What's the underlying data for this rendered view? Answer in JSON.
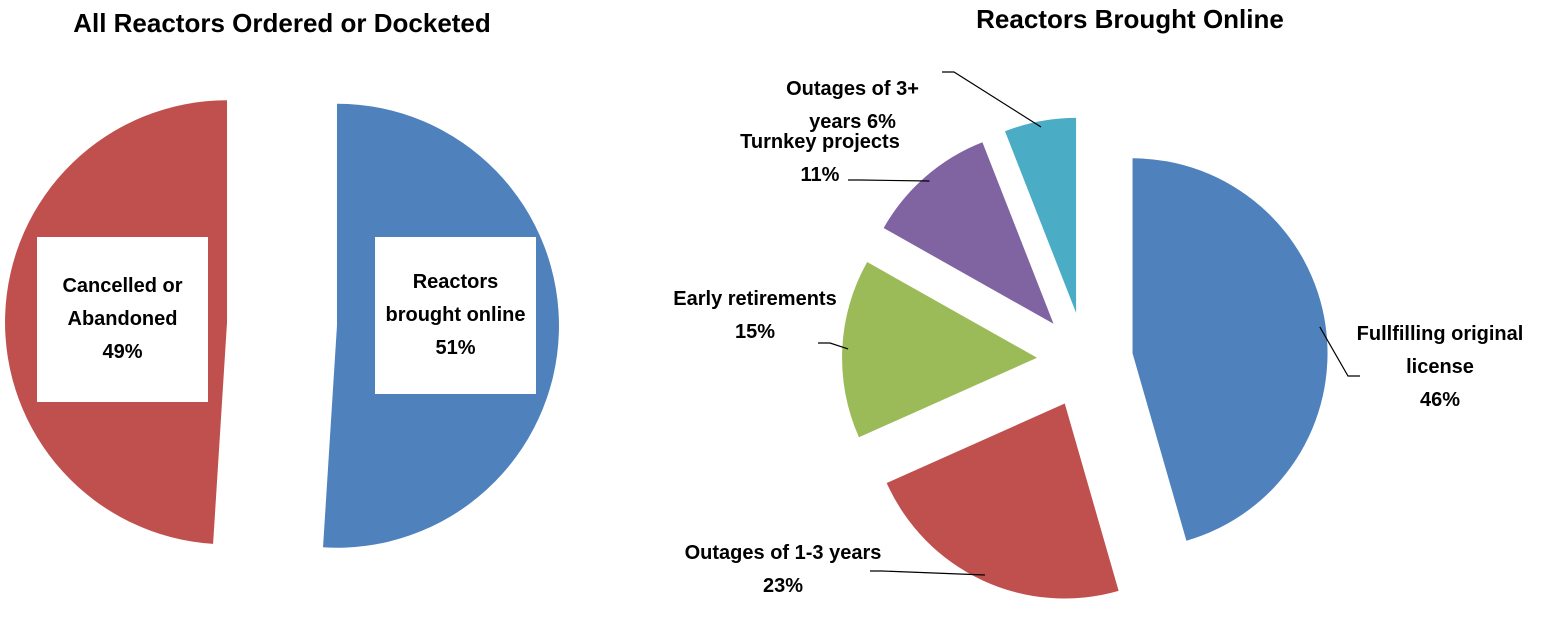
{
  "chart_data": [
    {
      "type": "pie",
      "title": "All Reactors Ordered or Docketed",
      "categories": [
        "Reactors brought online",
        "Cancelled or Abandoned"
      ],
      "values": [
        51,
        49
      ],
      "value_labels": [
        "51%",
        "49%"
      ],
      "colors": [
        "#4f81bd",
        "#c0504d"
      ]
    },
    {
      "type": "pie",
      "title": "Reactors Brought Online",
      "categories": [
        "Fullfilling original license",
        "Outages of 1-3 years",
        "Early retirements",
        "Turnkey projects",
        "Outages of 3+ years"
      ],
      "values": [
        46,
        23,
        15,
        11,
        6
      ],
      "value_labels": [
        "46%",
        "23%",
        "15%",
        "11%",
        "6%"
      ],
      "colors": [
        "#4f81bd",
        "#c0504d",
        "#9bbb59",
        "#8064a2",
        "#4bacc6"
      ]
    }
  ]
}
